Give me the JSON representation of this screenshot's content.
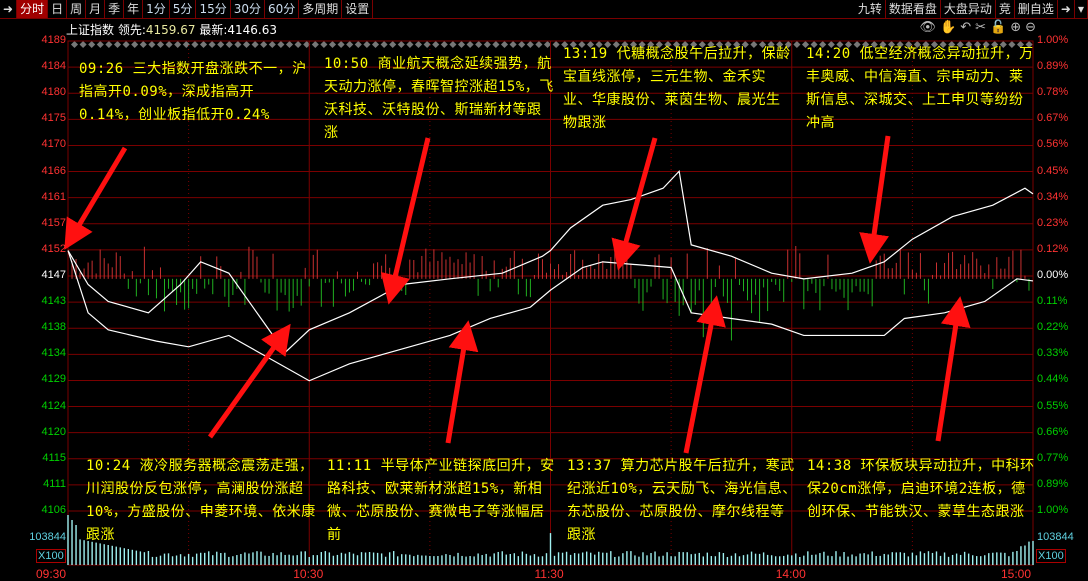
{
  "toolbar": {
    "left_icon": "collapse-icon",
    "tabs": [
      "分时",
      "日",
      "周",
      "月",
      "季",
      "年",
      "1分",
      "5分",
      "15分",
      "30分",
      "60分",
      "多周期",
      "设置"
    ],
    "active": "分时",
    "right": [
      "九转",
      "数据看盘",
      "大盘异动",
      "竞",
      "删自选"
    ],
    "right_icons": [
      "collapse-icon",
      "dropdown-icon"
    ]
  },
  "info": {
    "name": "上证指数",
    "lead_label": "领先:",
    "lead_value": "4159.67",
    "last_label": "最新:",
    "last_value": "4146.63"
  },
  "tool_icons": [
    "eye-icon",
    "hand-icon",
    "undo-icon",
    "scissors-icon",
    "lock-icon",
    "zoom-in-icon",
    "zoom-out-icon"
  ],
  "y_left": [
    "4189",
    "4184",
    "4180",
    "4175",
    "4170",
    "4166",
    "4161",
    "4157",
    "4152",
    "4147",
    "4143",
    "4138",
    "4134",
    "4129",
    "4124",
    "4120",
    "4115",
    "4111",
    "4106"
  ],
  "y_right": [
    "1.00%",
    "0.89%",
    "0.78%",
    "0.67%",
    "0.56%",
    "0.45%",
    "0.34%",
    "0.23%",
    "0.12%",
    "0.00%",
    "0.11%",
    "0.22%",
    "0.33%",
    "0.44%",
    "0.55%",
    "0.66%",
    "0.77%",
    "0.89%",
    "1.00%"
  ],
  "volume": {
    "label": "103844",
    "unit": "X100"
  },
  "x_ticks": [
    "09:30",
    "10:30",
    "11:30",
    "14:00",
    "15:00"
  ],
  "colors": {
    "up": "#ff3232",
    "down": "#00d000",
    "grid": "#7a0000",
    "note": "#ffff00",
    "volume": "#a0f0f0"
  },
  "notes": [
    {
      "text": "09:26 三大指数开盘涨跌不一，沪指高开0.09%，深成指高开0.14%，创业板指低开0.24%"
    },
    {
      "text": "10:50 商业航天概念延续强势，航天动力涨停，春晖智控涨超15%，飞沃科技、沃特股份、斯瑞新材等跟涨"
    },
    {
      "text": "13:19 代糖概念股午后拉升，保龄宝直线涨停，三元生物、金禾实业、华康股份、莱茵生物、晨光生物跟涨"
    },
    {
      "text": "14:20 低空经济概念异动拉升，万丰奥威、中信海直、宗申动力、莱斯信息、深城交、上工申贝等纷纷冲高"
    },
    {
      "text": "10:24 液冷服务器概念震荡走强，川润股份反包涨停，高澜股份涨超10%，方盛股份、申菱环境、依米康跟涨"
    },
    {
      "text": "11:11 半导体产业链探底回升，安路科技、欧莱新材涨超15%，新相微、芯原股份、赛微电子等涨幅居前"
    },
    {
      "text": "13:37 算力芯片股午后拉升，寒武纪涨近10%，云天励飞、海光信息、东芯股份、芯原股份、摩尔线程等跟涨"
    },
    {
      "text": "14:38 环保板块异动拉升，中科环保20cm涨停，启迪环境2连板，德创环保、节能铁汉、蒙草生态跟涨"
    }
  ],
  "chart_data": {
    "type": "line",
    "prev_close": 4147,
    "ylim": [
      4106,
      4189
    ],
    "series": [
      {
        "points": [
          [
            0,
            4152
          ],
          [
            5,
            4146
          ],
          [
            10,
            4143
          ],
          [
            20,
            4141
          ],
          [
            28,
            4146
          ],
          [
            33,
            4150
          ],
          [
            40,
            4148
          ],
          [
            48,
            4140
          ],
          [
            54,
            4134
          ],
          [
            60,
            4138
          ],
          [
            70,
            4141
          ],
          [
            83,
            4146
          ],
          [
            95,
            4147
          ],
          [
            108,
            4148
          ],
          [
            118,
            4151
          ],
          [
            120,
            4152
          ],
          [
            125,
            4156
          ],
          [
            133,
            4160
          ],
          [
            140,
            4161
          ],
          [
            148,
            4163
          ],
          [
            152,
            4166
          ],
          [
            155,
            4153
          ],
          [
            165,
            4151
          ],
          [
            175,
            4148
          ],
          [
            183,
            4147
          ],
          [
            195,
            4148
          ],
          [
            203,
            4150
          ],
          [
            210,
            4154
          ],
          [
            220,
            4158
          ],
          [
            230,
            4160
          ],
          [
            238,
            4163
          ],
          [
            240,
            4162
          ]
        ]
      },
      {
        "points": [
          [
            0,
            4152
          ],
          [
            5,
            4141
          ],
          [
            10,
            4138
          ],
          [
            22,
            4136
          ],
          [
            30,
            4135
          ],
          [
            40,
            4137
          ],
          [
            50,
            4133
          ],
          [
            60,
            4129
          ],
          [
            70,
            4132
          ],
          [
            85,
            4135
          ],
          [
            95,
            4137
          ],
          [
            105,
            4140
          ],
          [
            115,
            4142
          ],
          [
            120,
            4145
          ],
          [
            128,
            4149
          ],
          [
            133,
            4150
          ],
          [
            150,
            4149
          ],
          [
            155,
            4141
          ],
          [
            165,
            4140
          ],
          [
            175,
            4139
          ],
          [
            183,
            4137
          ],
          [
            195,
            4137
          ],
          [
            203,
            4137
          ],
          [
            208,
            4140
          ],
          [
            218,
            4141
          ],
          [
            228,
            4143
          ],
          [
            236,
            4147
          ],
          [
            240,
            4146.63
          ]
        ]
      }
    ]
  }
}
